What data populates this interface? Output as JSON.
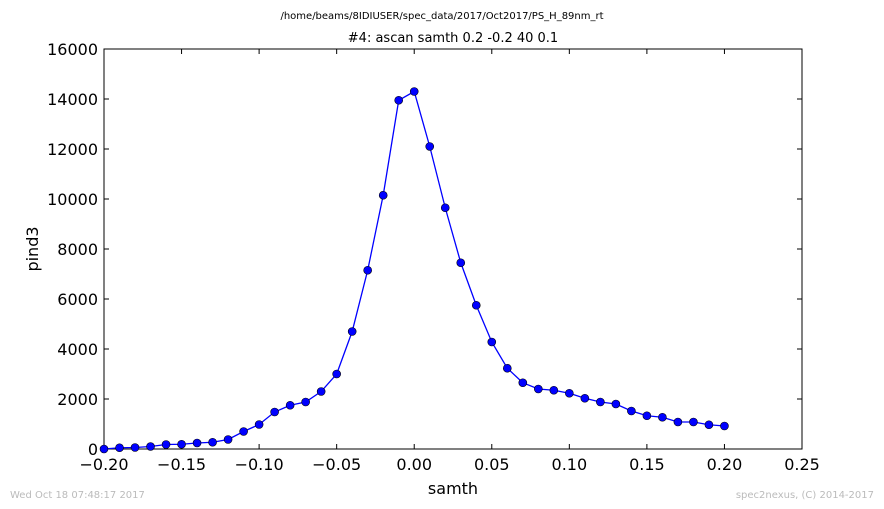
{
  "header": {
    "supertitle": "/home/beams/8IDIUSER/spec_data/2017/Oct2017/PS_H_89nm_rt"
  },
  "footer": {
    "timestamp": "Wed Oct 18 07:48:17 2017",
    "credit": "spec2nexus, (C) 2014-2017"
  },
  "chart_data": {
    "type": "line",
    "title": "#4: ascan  samth 0.2 -0.2  40 0.1",
    "xlabel": "samth",
    "ylabel": "pind3",
    "xlim": [
      -0.2,
      0.25
    ],
    "ylim": [
      0,
      16000
    ],
    "xticks": [
      -0.2,
      -0.15,
      -0.1,
      -0.05,
      0.0,
      0.05,
      0.1,
      0.15,
      0.2,
      0.25
    ],
    "xtick_labels": [
      "−0.20",
      "−0.15",
      "−0.10",
      "−0.05",
      "0.00",
      "0.05",
      "0.10",
      "0.15",
      "0.20",
      "0.25"
    ],
    "yticks": [
      0,
      2000,
      4000,
      6000,
      8000,
      10000,
      12000,
      14000,
      16000
    ],
    "ytick_labels": [
      "0",
      "2000",
      "4000",
      "6000",
      "8000",
      "10000",
      "12000",
      "14000",
      "16000"
    ],
    "grid": false,
    "line_color": "#0000ff",
    "marker": "circle",
    "series": [
      {
        "x": [
          -0.2,
          -0.19,
          -0.18,
          -0.17,
          -0.16,
          -0.15,
          -0.14,
          -0.13,
          -0.12,
          -0.11,
          -0.1,
          -0.09,
          -0.08,
          -0.07,
          -0.06,
          -0.05,
          -0.04,
          -0.03,
          -0.02,
          -0.01,
          0.0,
          0.01,
          0.02,
          0.03,
          0.04,
          0.05,
          0.06,
          0.07,
          0.08,
          0.09,
          0.1,
          0.11,
          0.12,
          0.13,
          0.14,
          0.15,
          0.16,
          0.17,
          0.18,
          0.19,
          0.2
        ],
        "y": [
          0,
          50,
          60,
          100,
          180,
          190,
          240,
          270,
          380,
          700,
          980,
          1480,
          1750,
          1880,
          2300,
          3000,
          4700,
          7150,
          10150,
          13950,
          14300,
          12100,
          9650,
          7450,
          5750,
          4280,
          3230,
          2650,
          2400,
          2350,
          2230,
          2030,
          1880,
          1800,
          1520,
          1330,
          1270,
          1080,
          1080,
          970,
          920
        ]
      }
    ]
  }
}
